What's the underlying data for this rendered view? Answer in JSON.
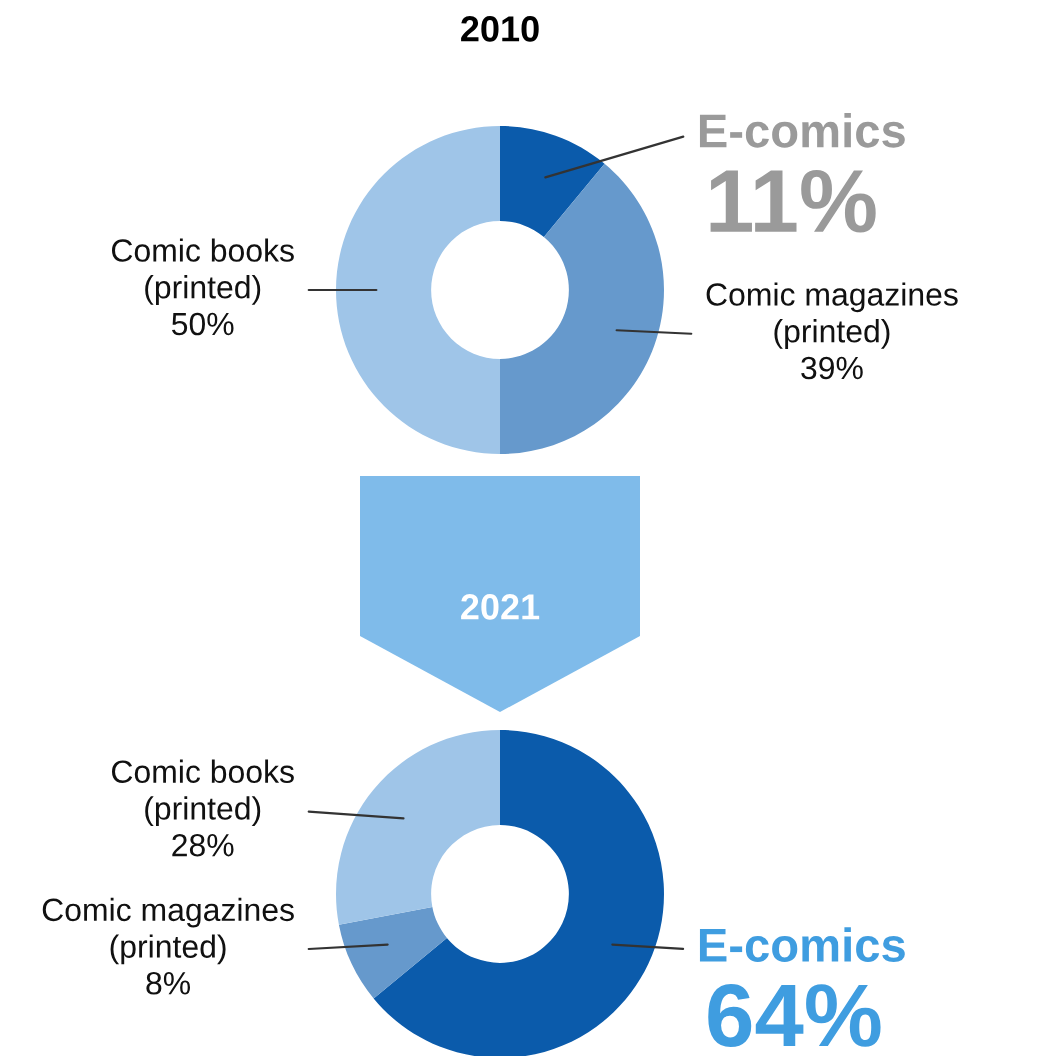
{
  "chart_data": [
    {
      "type": "donut",
      "title": "2010",
      "categories": [
        "E-comics",
        "Comic magazines\n(printed)",
        "Comic books\n(printed)"
      ],
      "values": [
        11,
        39,
        50
      ],
      "value_labels": [
        "11%",
        "39%",
        "50%"
      ],
      "colors": [
        "#0b5bab",
        "#6699cc",
        "#9fc5e8"
      ]
    },
    {
      "type": "donut",
      "title": "2021",
      "categories": [
        "E-comics",
        "Comic magazines\n(printed)",
        "Comic books\n(printed)"
      ],
      "values": [
        64,
        8,
        28
      ],
      "value_labels": [
        "64%",
        "8%",
        "28%"
      ],
      "colors": [
        "#0b5bab",
        "#6699cc",
        "#9fc5e8"
      ]
    }
  ]
}
